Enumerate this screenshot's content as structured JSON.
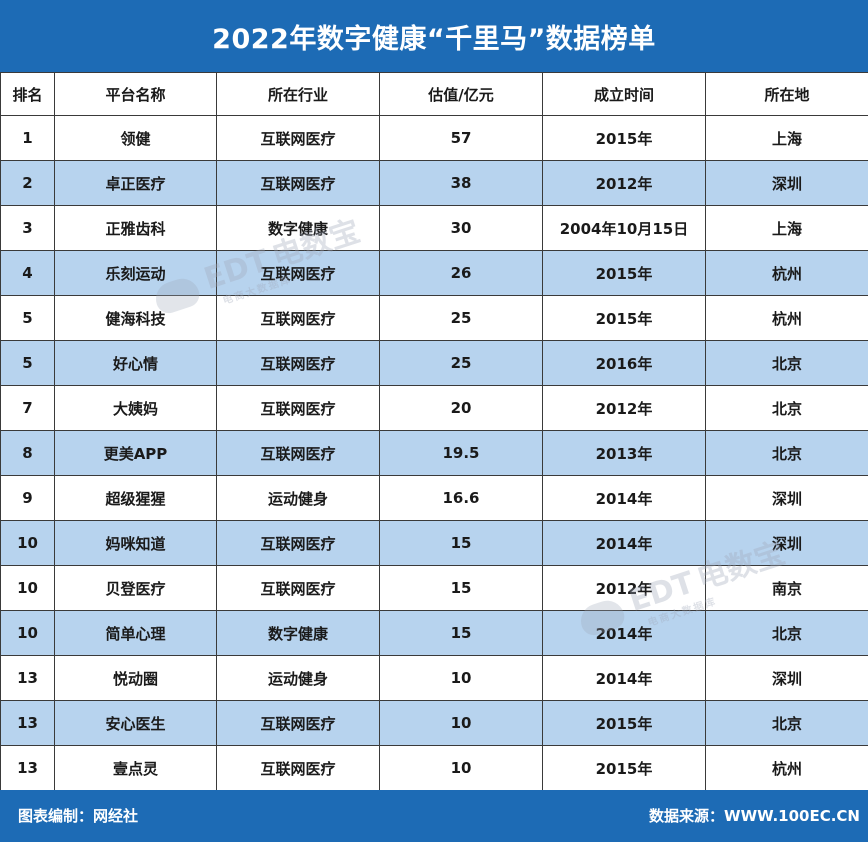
{
  "title": "2022年数字健康“千里马”数据榜单",
  "columns": [
    "排名",
    "平台名称",
    "所在行业",
    "估值/亿元",
    "成立时间",
    "所在地"
  ],
  "rows": [
    [
      "1",
      "领健",
      "互联网医疗",
      "57",
      "2015年",
      "上海"
    ],
    [
      "2",
      "卓正医疗",
      "互联网医疗",
      "38",
      "2012年",
      "深圳"
    ],
    [
      "3",
      "正雅齿科",
      "数字健康",
      "30",
      "2004年10月15日",
      "上海"
    ],
    [
      "4",
      "乐刻运动",
      "互联网医疗",
      "26",
      "2015年",
      "杭州"
    ],
    [
      "5",
      "健海科技",
      "互联网医疗",
      "25",
      "2015年",
      "杭州"
    ],
    [
      "5",
      "好心情",
      "互联网医疗",
      "25",
      "2016年",
      "北京"
    ],
    [
      "7",
      "大姨妈",
      "互联网医疗",
      "20",
      "2012年",
      "北京"
    ],
    [
      "8",
      "更美APP",
      "互联网医疗",
      "19.5",
      "2013年",
      "北京"
    ],
    [
      "9",
      "超级猩猩",
      "运动健身",
      "16.6",
      "2014年",
      "深圳"
    ],
    [
      "10",
      "妈咪知道",
      "互联网医疗",
      "15",
      "2014年",
      "深圳"
    ],
    [
      "10",
      "贝登医疗",
      "互联网医疗",
      "15",
      "2012年",
      "南京"
    ],
    [
      "10",
      "简单心理",
      "数字健康",
      "15",
      "2014年",
      "北京"
    ],
    [
      "13",
      "悦动圈",
      "运动健身",
      "10",
      "2014年",
      "深圳"
    ],
    [
      "13",
      "安心医生",
      "互联网医疗",
      "10",
      "2015年",
      "北京"
    ],
    [
      "13",
      "壹点灵",
      "互联网医疗",
      "10",
      "2015年",
      "杭州"
    ]
  ],
  "watermark": {
    "brand": "电数宝",
    "logo": "EDT",
    "sub": "电商大数据库"
  },
  "footer": {
    "left": "图表编制：网经社",
    "right": "数据来源：WWW.100EC.CN"
  },
  "colors": {
    "header_bar": "#1d6bb5",
    "stripe": "#b7d3ee"
  }
}
